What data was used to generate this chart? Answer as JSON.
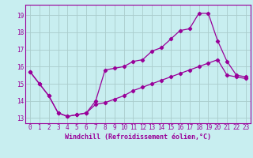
{
  "xlabel": "Windchill (Refroidissement éolien,°C)",
  "bg_color": "#c8eef0",
  "line_color": "#990099",
  "xlim": [
    -0.5,
    23.5
  ],
  "ylim": [
    12.7,
    19.6
  ],
  "yticks": [
    13,
    14,
    15,
    16,
    17,
    18,
    19
  ],
  "xticks": [
    0,
    1,
    2,
    3,
    4,
    5,
    6,
    7,
    8,
    9,
    10,
    11,
    12,
    13,
    14,
    15,
    16,
    17,
    18,
    19,
    20,
    21,
    22,
    23
  ],
  "line1_x": [
    0,
    1,
    2,
    3,
    4,
    5,
    6,
    7,
    8,
    9,
    10,
    11,
    12,
    13,
    14,
    15,
    16,
    17,
    18,
    19,
    20,
    21,
    22,
    23
  ],
  "line1_y": [
    15.7,
    15.0,
    14.3,
    13.3,
    13.1,
    13.2,
    13.3,
    14.0,
    15.8,
    15.9,
    16.0,
    16.3,
    16.4,
    16.9,
    17.1,
    17.6,
    18.1,
    18.2,
    19.1,
    19.1,
    17.5,
    16.3,
    15.5,
    15.4
  ],
  "line2_x": [
    0,
    1,
    2,
    3,
    4,
    5,
    6,
    7,
    8,
    9,
    10,
    11,
    12,
    13,
    14,
    15,
    16,
    17,
    18,
    19,
    20,
    21,
    22,
    23
  ],
  "line2_y": [
    15.7,
    15.0,
    14.3,
    13.3,
    13.1,
    13.2,
    13.3,
    13.8,
    13.9,
    14.1,
    14.3,
    14.6,
    14.8,
    15.0,
    15.2,
    15.4,
    15.6,
    15.8,
    16.0,
    16.2,
    16.4,
    15.5,
    15.4,
    15.3
  ],
  "grid_color": "#aacccc",
  "tick_fontsize": 5.5,
  "xlabel_fontsize": 6.0,
  "spine_color": "#990099",
  "marker": "D",
  "markersize": 2.2,
  "linewidth": 0.9
}
